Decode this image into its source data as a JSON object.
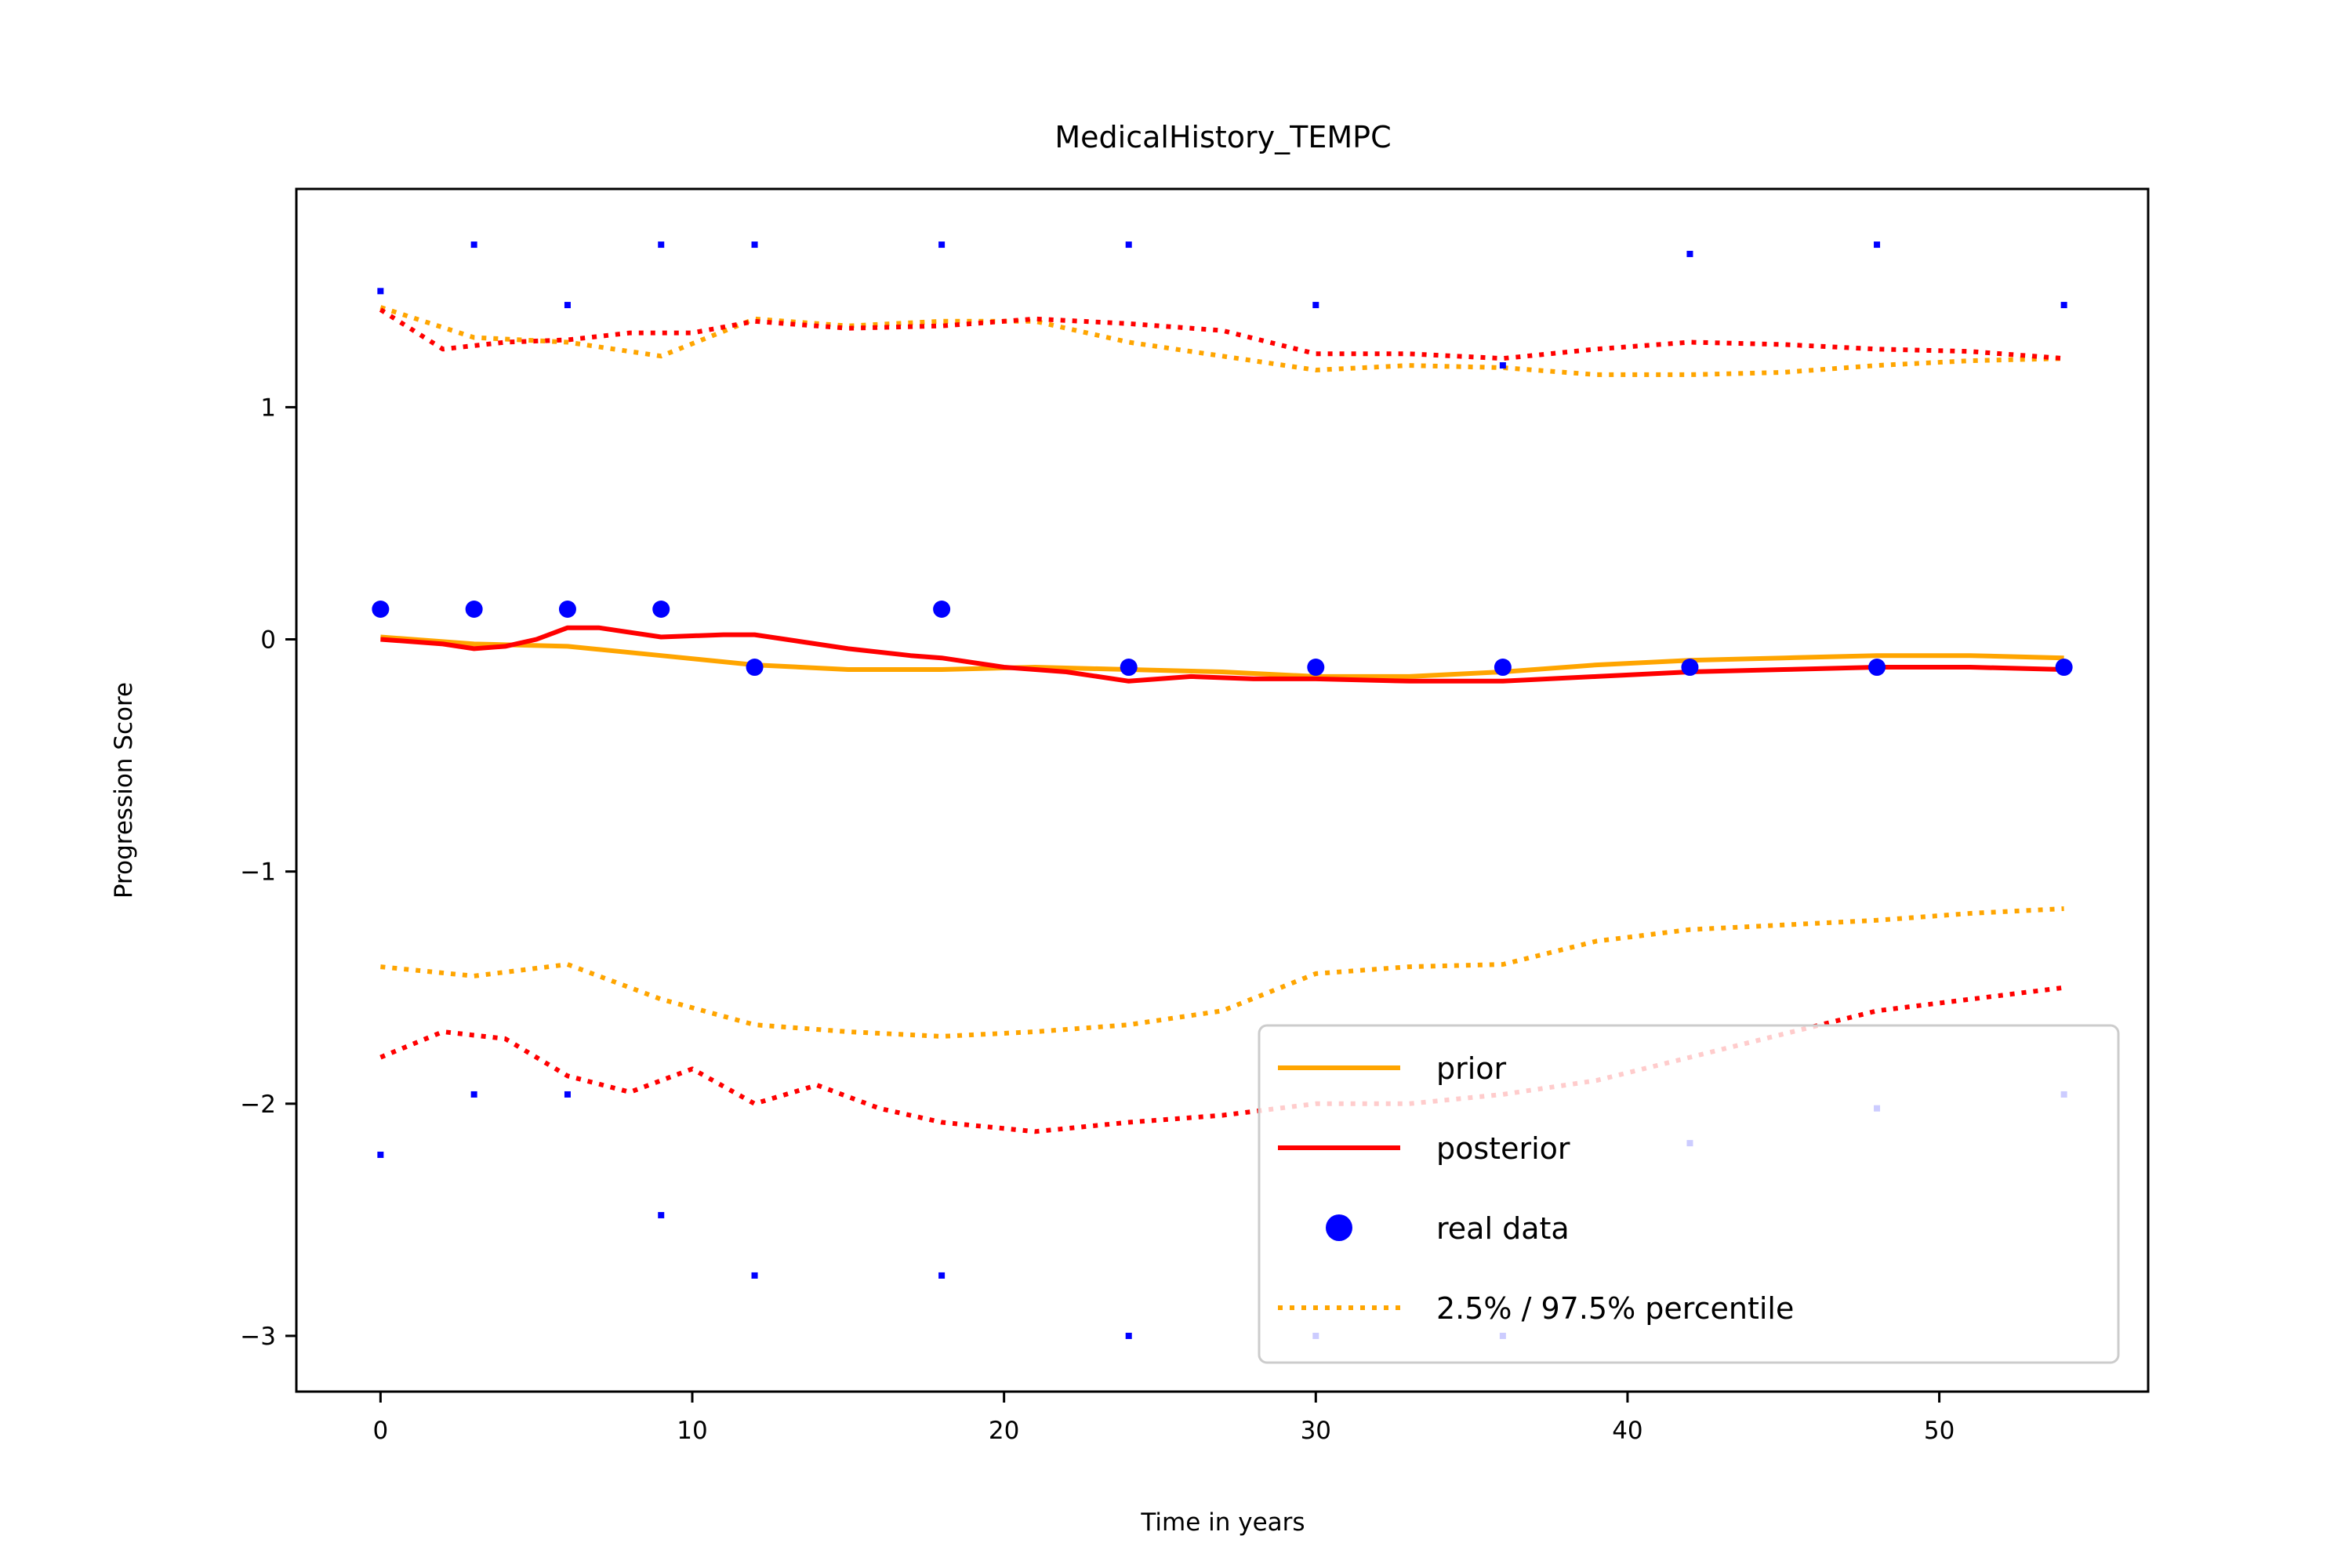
{
  "chart_data": {
    "type": "line",
    "title": "MedicalHistory_TEMPC",
    "xlabel": "Time in years",
    "ylabel": "Progression Score",
    "xlim": [
      -2.7,
      56.7
    ],
    "ylim": [
      -3.24,
      1.94
    ],
    "xticks": [
      0,
      10,
      20,
      30,
      40,
      50
    ],
    "yticks": [
      1,
      0,
      -1,
      -2,
      -3
    ],
    "x_tick_labels": [
      "0",
      "10",
      "20",
      "30",
      "40",
      "50"
    ],
    "y_tick_labels": [
      "1",
      "0",
      "−1",
      "−2",
      "−3"
    ],
    "grid": false,
    "legend_position": "lower right",
    "colors": {
      "prior": "#FFA500",
      "posterior": "#FF0000",
      "real_data": "#0000FF"
    },
    "series": [
      {
        "name": "prior",
        "style": "solid",
        "color": "#FFA500",
        "x": [
          0,
          3,
          6,
          9,
          12,
          15,
          18,
          21,
          24,
          27,
          30,
          33,
          36,
          39,
          42,
          45,
          48,
          51,
          54
        ],
        "y": [
          0.01,
          -0.02,
          -0.03,
          -0.07,
          -0.11,
          -0.13,
          -0.13,
          -0.12,
          -0.13,
          -0.14,
          -0.16,
          -0.16,
          -0.14,
          -0.11,
          -0.09,
          -0.08,
          -0.07,
          -0.07,
          -0.08
        ]
      },
      {
        "name": "posterior",
        "style": "solid",
        "color": "#FF0000",
        "x": [
          0,
          2,
          3,
          4,
          5,
          6,
          7,
          9,
          11,
          12,
          13,
          15,
          17,
          18,
          20,
          22,
          23,
          24,
          26,
          28,
          30,
          33,
          36,
          39,
          42,
          45,
          48,
          51,
          54
        ],
        "y": [
          0.0,
          -0.02,
          -0.04,
          -0.03,
          0.0,
          0.05,
          0.05,
          0.01,
          0.02,
          0.02,
          0.0,
          -0.04,
          -0.07,
          -0.08,
          -0.12,
          -0.14,
          -0.16,
          -0.18,
          -0.16,
          -0.17,
          -0.17,
          -0.18,
          -0.18,
          -0.16,
          -0.14,
          -0.13,
          -0.12,
          -0.12,
          -0.13
        ]
      },
      {
        "name": "2.5% / 97.5% percentile",
        "style": "dotted",
        "color": "#FFA500",
        "x": [
          0,
          3,
          6,
          9,
          12,
          15,
          18,
          21,
          24,
          27,
          30,
          33,
          36,
          39,
          42,
          45,
          48,
          51,
          54
        ],
        "y": [
          1.43,
          1.3,
          1.28,
          1.22,
          1.38,
          1.35,
          1.37,
          1.37,
          1.28,
          1.22,
          1.16,
          1.18,
          1.17,
          1.14,
          1.14,
          1.15,
          1.18,
          1.2,
          1.21
        ]
      },
      {
        "name": "prior lower percentile",
        "style": "dotted",
        "color": "#FFA500",
        "x": [
          0,
          3,
          6,
          9,
          12,
          15,
          18,
          21,
          24,
          27,
          30,
          33,
          36,
          39,
          42,
          45,
          48,
          51,
          54
        ],
        "y": [
          -1.41,
          -1.45,
          -1.4,
          -1.55,
          -1.66,
          -1.69,
          -1.71,
          -1.69,
          -1.66,
          -1.6,
          -1.44,
          -1.41,
          -1.4,
          -1.3,
          -1.25,
          -1.23,
          -1.21,
          -1.18,
          -1.16
        ]
      },
      {
        "name": "posterior upper percentile",
        "style": "dotted",
        "color": "#FF0000",
        "x": [
          0,
          2,
          4,
          6,
          8,
          10,
          12,
          15,
          18,
          21,
          24,
          27,
          30,
          33,
          36,
          39,
          42,
          45,
          48,
          51,
          54
        ],
        "y": [
          1.42,
          1.25,
          1.28,
          1.29,
          1.32,
          1.32,
          1.37,
          1.34,
          1.35,
          1.38,
          1.36,
          1.33,
          1.23,
          1.23,
          1.21,
          1.25,
          1.28,
          1.27,
          1.25,
          1.24,
          1.21
        ]
      },
      {
        "name": "posterior lower percentile",
        "style": "dotted",
        "color": "#FF0000",
        "x": [
          0,
          2,
          4,
          6,
          8,
          10,
          12,
          14,
          16,
          18,
          21,
          24,
          27,
          30,
          33,
          36,
          39,
          42,
          45,
          48,
          51,
          54
        ],
        "y": [
          -1.8,
          -1.69,
          -1.72,
          -1.88,
          -1.95,
          -1.85,
          -2.0,
          -1.92,
          -2.02,
          -2.08,
          -2.12,
          -2.08,
          -2.05,
          -2.0,
          -2.0,
          -1.96,
          -1.9,
          -1.8,
          -1.7,
          -1.6,
          -1.55,
          -1.5
        ]
      }
    ],
    "real_data": {
      "name": "real data",
      "color": "#0000FF",
      "points": [
        {
          "x": 0,
          "y": 0.13
        },
        {
          "x": 3,
          "y": 0.13
        },
        {
          "x": 6,
          "y": 0.13
        },
        {
          "x": 9,
          "y": 0.13
        },
        {
          "x": 12,
          "y": -0.12
        },
        {
          "x": 18,
          "y": 0.13
        },
        {
          "x": 24,
          "y": -0.12
        },
        {
          "x": 30,
          "y": -0.12
        },
        {
          "x": 36,
          "y": -0.12
        },
        {
          "x": 42,
          "y": -0.12
        },
        {
          "x": 48,
          "y": -0.12
        },
        {
          "x": 54,
          "y": -0.12
        }
      ],
      "small_points": [
        {
          "x": 0,
          "y": 1.5
        },
        {
          "x": 3,
          "y": 1.7
        },
        {
          "x": 6,
          "y": 1.44
        },
        {
          "x": 9,
          "y": 1.7
        },
        {
          "x": 12,
          "y": 1.7
        },
        {
          "x": 18,
          "y": 1.7
        },
        {
          "x": 24,
          "y": 1.7
        },
        {
          "x": 30,
          "y": 1.44
        },
        {
          "x": 36,
          "y": 1.18
        },
        {
          "x": 42,
          "y": 1.66
        },
        {
          "x": 48,
          "y": 1.7
        },
        {
          "x": 54,
          "y": 1.44
        },
        {
          "x": 0,
          "y": -2.22
        },
        {
          "x": 3,
          "y": -1.96
        },
        {
          "x": 6,
          "y": -1.96
        },
        {
          "x": 9,
          "y": -2.48
        },
        {
          "x": 12,
          "y": -2.74
        },
        {
          "x": 18,
          "y": -2.74
        },
        {
          "x": 24,
          "y": -3.0
        },
        {
          "x": 30,
          "y": -3.0
        },
        {
          "x": 36,
          "y": -3.0
        },
        {
          "x": 42,
          "y": -2.17
        },
        {
          "x": 48,
          "y": -2.02
        },
        {
          "x": 54,
          "y": -1.96
        }
      ]
    },
    "legend": [
      {
        "label": "prior",
        "kind": "solid-line",
        "color": "#FFA500"
      },
      {
        "label": "posterior",
        "kind": "solid-line",
        "color": "#FF0000"
      },
      {
        "label": "real data",
        "kind": "marker",
        "color": "#0000FF"
      },
      {
        "label": "2.5% / 97.5% percentile",
        "kind": "dotted-line",
        "color": "#FFA500"
      }
    ]
  }
}
